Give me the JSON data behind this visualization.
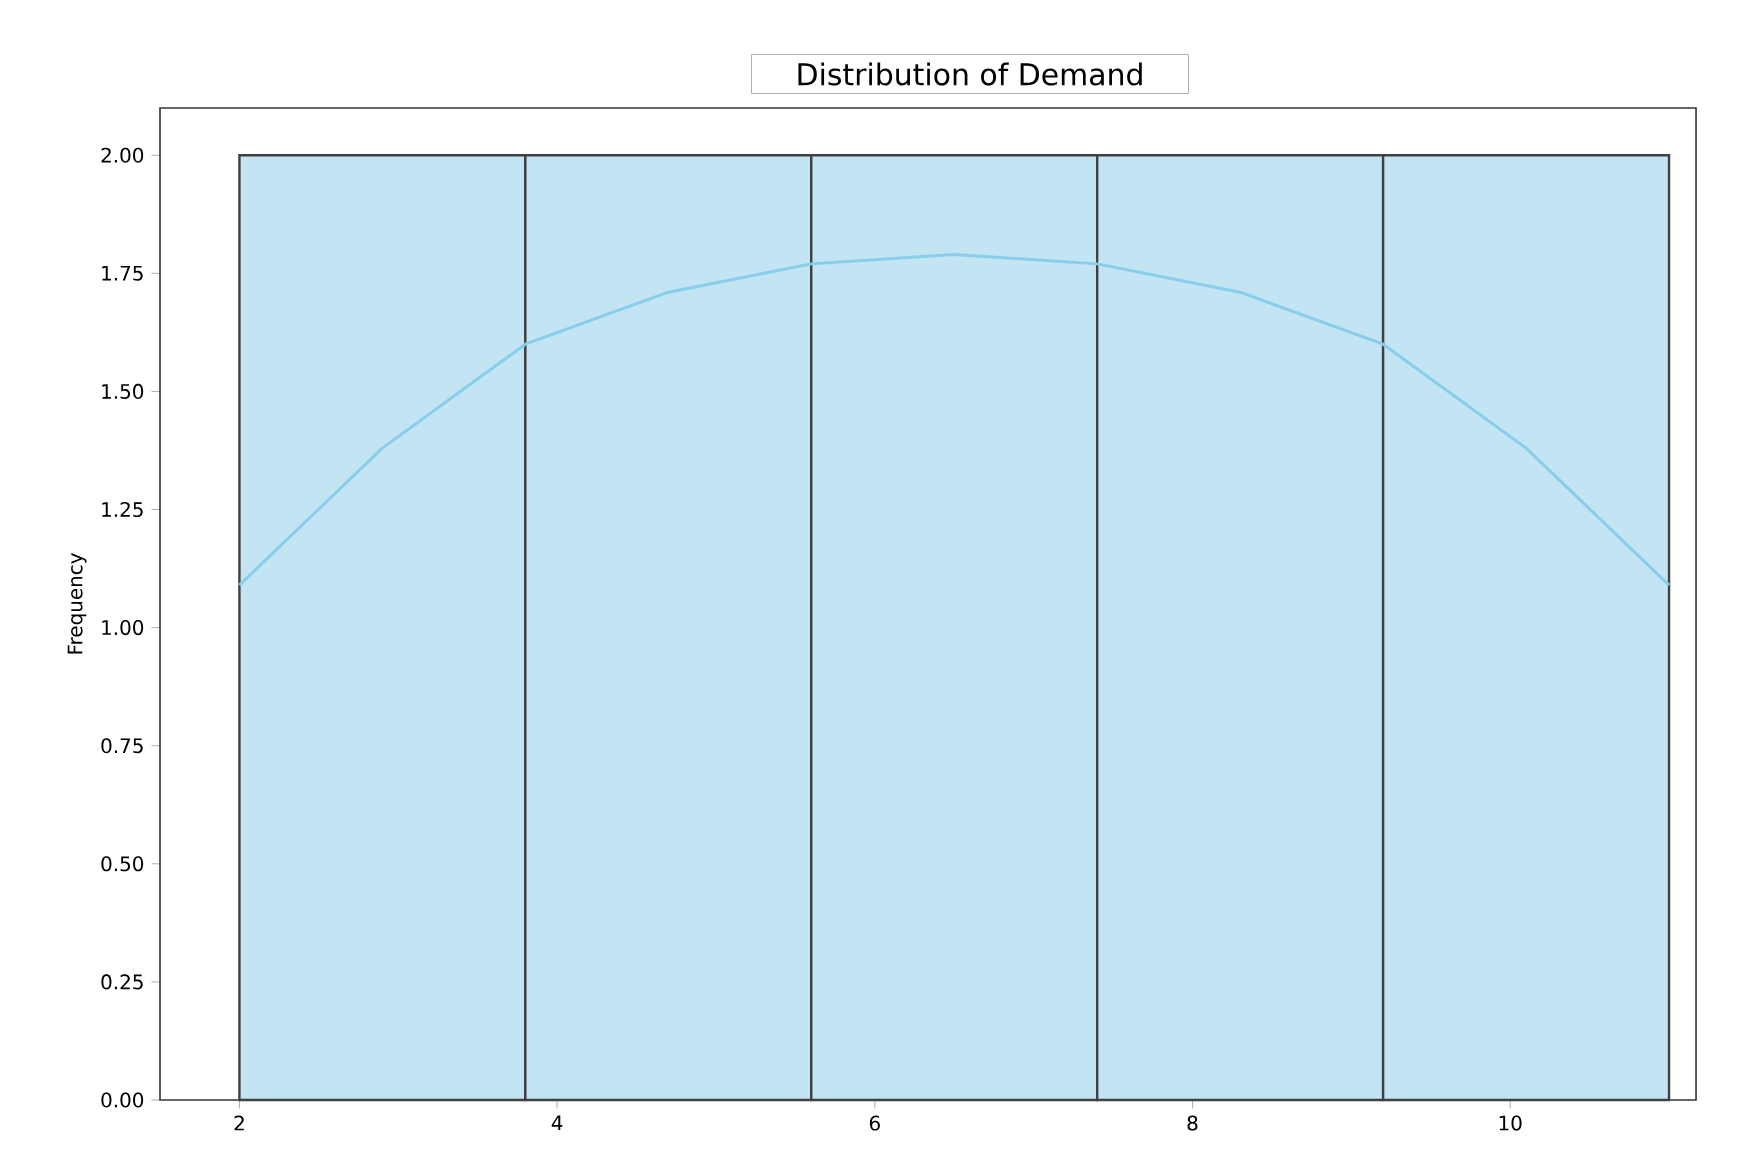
{
  "chart_data": {
    "type": "histogram",
    "title": "Distribution of Demand",
    "ylabel": "Frequency",
    "bins": [
      2,
      3.8,
      5.6,
      7.4,
      9.2,
      11
    ],
    "values": [
      2,
      2,
      2,
      2,
      2
    ],
    "color": "#c2e4f3",
    "series": [
      {
        "type": "line",
        "color": "#87ceeb",
        "x": [
          2,
          2.9,
          3.8,
          4.7,
          5.6,
          6.5,
          7.4,
          8.3,
          9.2,
          10.1,
          11
        ],
        "values": [
          1.09,
          1.38,
          1.6,
          1.71,
          1.77,
          1.79,
          1.77,
          1.71,
          1.6,
          1.38,
          1.09
        ]
      }
    ],
    "xlim": [
      1.5,
      11.17
    ],
    "ylim": [
      0,
      2.1
    ],
    "xticks": [
      2,
      4,
      6,
      8,
      10
    ],
    "yticks": [
      {
        "value": 0,
        "label": "0.00"
      },
      {
        "value": 0.25,
        "label": "0.25"
      },
      {
        "value": 0.5,
        "label": "0.50"
      },
      {
        "value": 0.75,
        "label": "0.75"
      },
      {
        "value": 1.0,
        "label": "1.00"
      },
      {
        "value": 1.25,
        "label": "1.25"
      },
      {
        "value": 1.5,
        "label": "1.50"
      },
      {
        "value": 1.75,
        "label": "1.75"
      },
      {
        "value": 2.0,
        "label": "2.00"
      }
    ],
    "grid": false
  }
}
